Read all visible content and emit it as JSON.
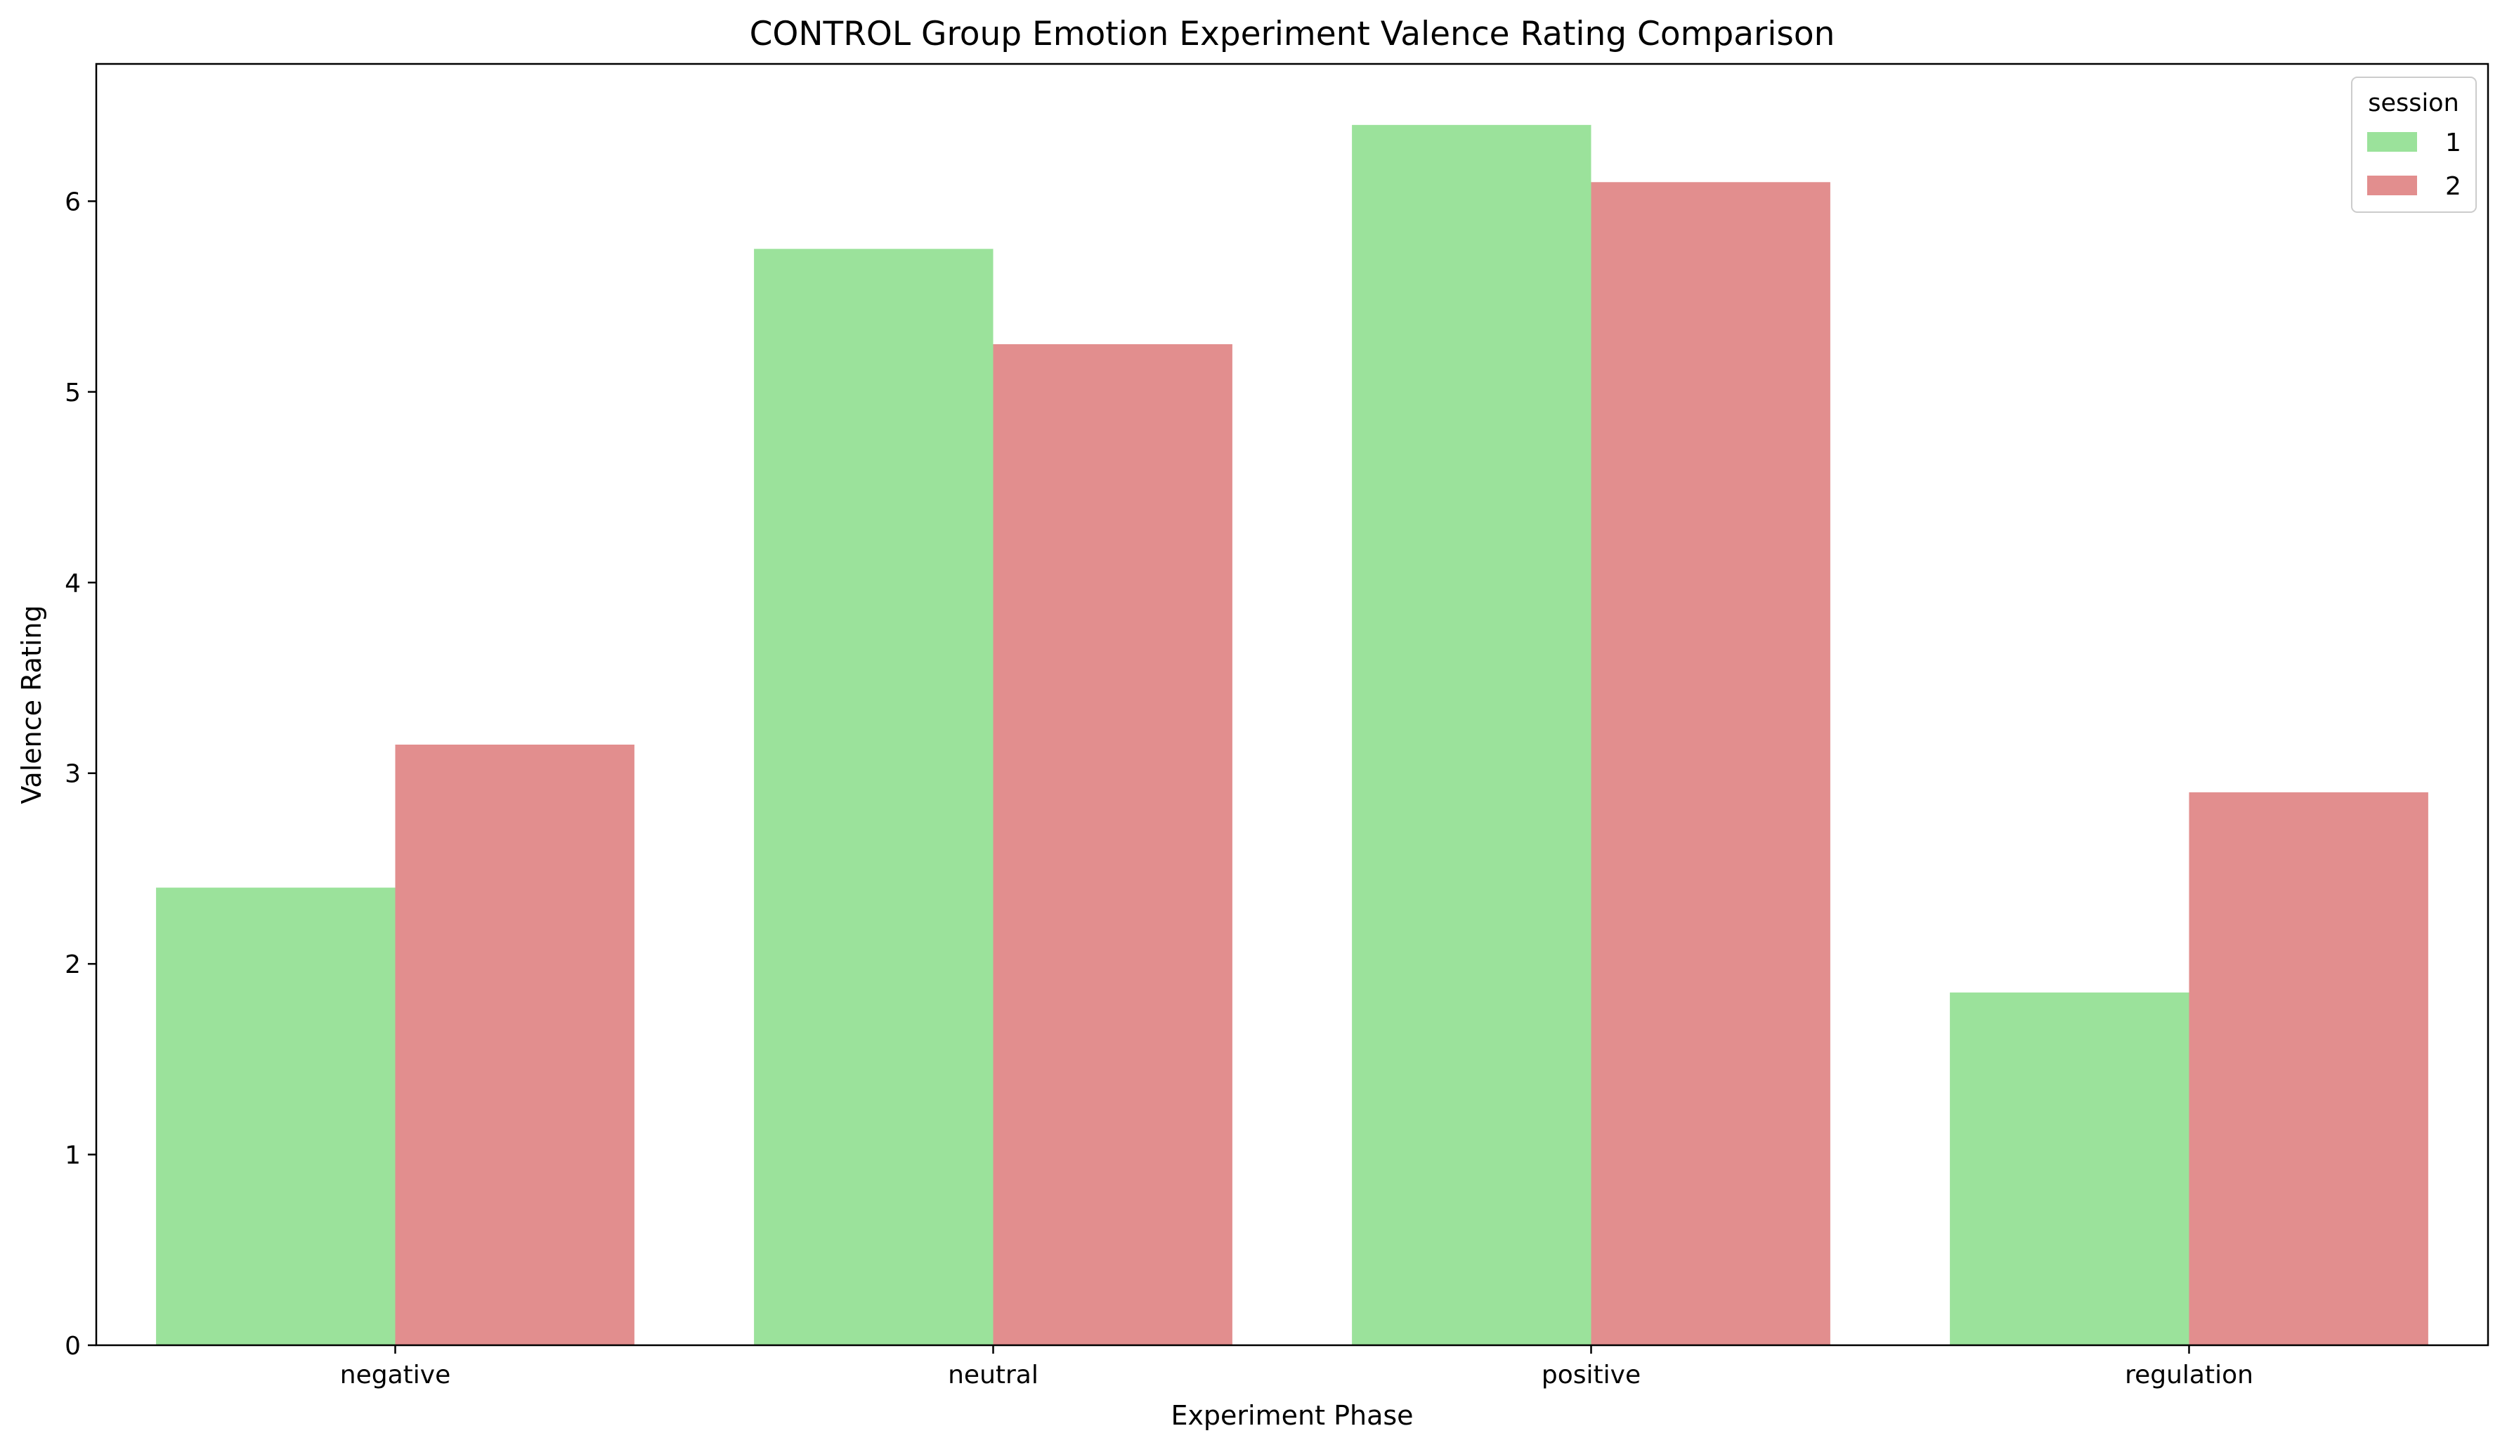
{
  "chart_data": {
    "type": "bar",
    "title": "CONTROL Group Emotion Experiment Valence Rating Comparison",
    "xlabel": "Experiment Phase",
    "ylabel": "Valence Rating",
    "categories": [
      "negative",
      "neutral",
      "positive",
      "regulation"
    ],
    "series": [
      {
        "name": "1",
        "color": "#9be29b",
        "values": [
          2.4,
          5.75,
          6.4,
          1.85
        ]
      },
      {
        "name": "2",
        "color": "#e28e8e",
        "values": [
          3.15,
          5.25,
          6.1,
          2.9
        ]
      }
    ],
    "ylim": [
      0,
      6.72
    ],
    "yticks": [
      "0",
      "1",
      "2",
      "3",
      "4",
      "5",
      "6"
    ],
    "legend": {
      "title": "session",
      "position": "top-right"
    },
    "grid": false
  }
}
